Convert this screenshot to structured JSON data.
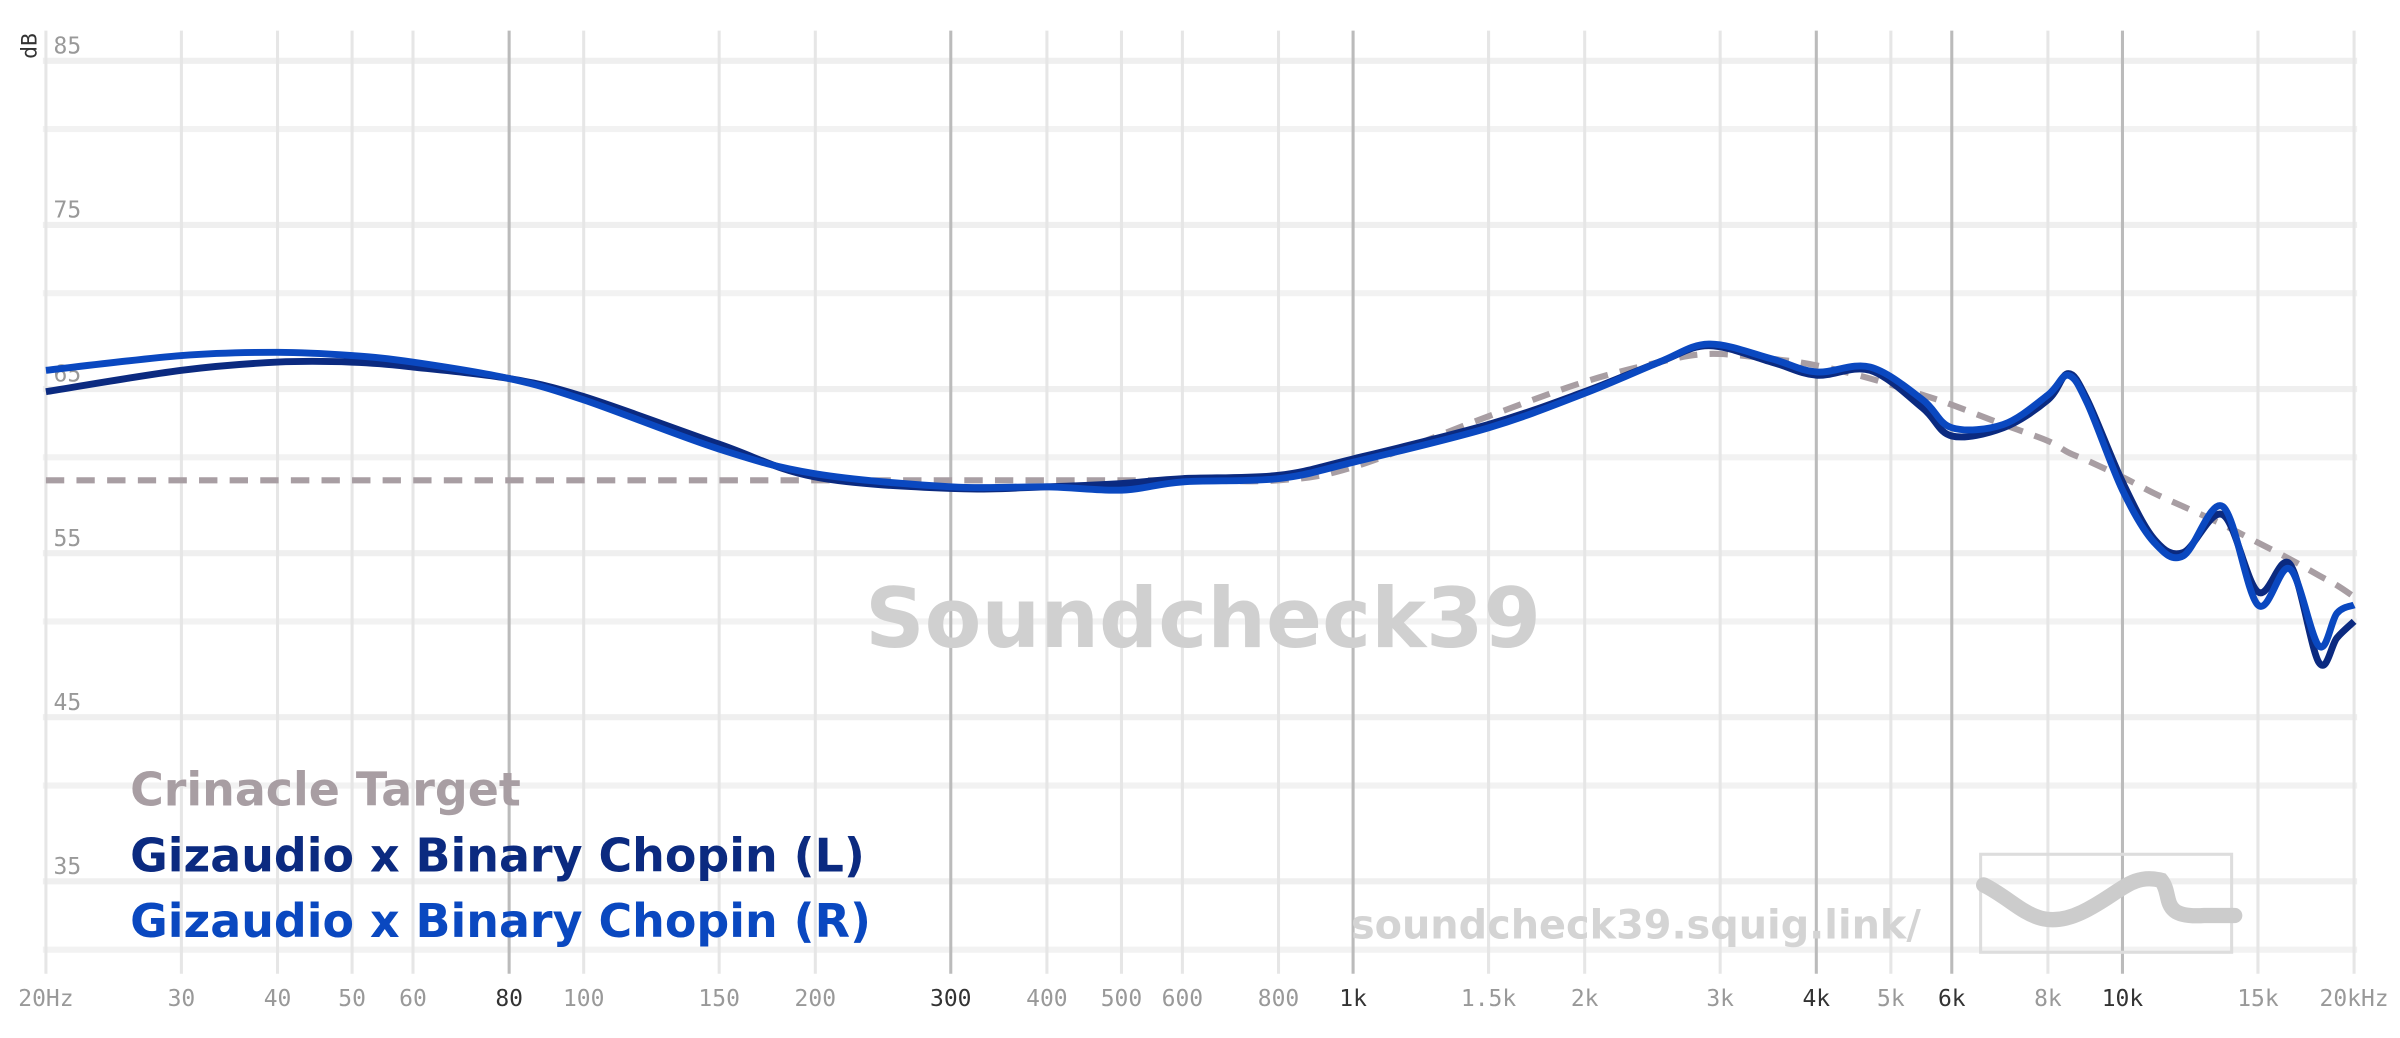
{
  "chart_data": {
    "type": "line",
    "y_label": "dB",
    "watermark": "Soundcheck39",
    "url": "soundcheck39.squig.link/",
    "log_x": true,
    "grid": true,
    "xlim": [
      20,
      20000
    ],
    "ylim": [
      29,
      86
    ],
    "xticks": [
      {
        "value": 20,
        "label": "20Hz"
      },
      30,
      40,
      50,
      60,
      {
        "value": 80,
        "label": "80",
        "major": true
      },
      100,
      150,
      200,
      {
        "value": 300,
        "label": "300",
        "major": true
      },
      400,
      500,
      600,
      800,
      {
        "value": 1000,
        "label": "1k",
        "major": true
      },
      {
        "value": 1500,
        "label": "1.5k"
      },
      {
        "value": 2000,
        "label": "2k"
      },
      {
        "value": 3000,
        "label": "3k"
      },
      {
        "value": 4000,
        "label": "4k",
        "major": true
      },
      {
        "value": 5000,
        "label": "5k"
      },
      {
        "value": 6000,
        "label": "6k",
        "major": true
      },
      {
        "value": 8000,
        "label": "8k"
      },
      {
        "value": 10000,
        "label": "10k",
        "major": true
      },
      {
        "value": 15000,
        "label": "15k"
      },
      {
        "value": 20000,
        "label": "20kHz"
      }
    ],
    "yticks": [
      85,
      75,
      65,
      55,
      45,
      35
    ],
    "yminor": [
      80,
      70,
      60,
      50,
      40,
      30
    ],
    "x": [
      20,
      30,
      40,
      50,
      60,
      80,
      100,
      150,
      200,
      300,
      400,
      500,
      600,
      800,
      1000,
      1500,
      2000,
      2500,
      2900,
      3500,
      4000,
      4700,
      5500,
      6000,
      7000,
      8000,
      8500,
      9000,
      10000,
      11000,
      12000,
      13500,
      15000,
      16500,
      18000,
      19000,
      20000
    ],
    "series": [
      {
        "name": "Crinacle Target",
        "color": "#a89ea3",
        "dashed": true,
        "values": [
          58.6,
          58.6,
          58.6,
          58.6,
          58.6,
          58.6,
          58.6,
          58.6,
          58.6,
          58.6,
          58.6,
          58.6,
          58.6,
          58.6,
          59.4,
          62.5,
          64.6,
          65.8,
          66.3,
          66,
          65.6,
          64.8,
          63.8,
          63.2,
          62,
          61,
          60.3,
          59.8,
          58.8,
          57.8,
          57,
          55.9,
          54.8,
          53.8,
          52.8,
          52.2,
          51.5
        ]
      },
      {
        "name": "Gizaudio x Binary Chopin (L)",
        "color": "#0b2a80",
        "values": [
          64,
          65.3,
          65.8,
          65.8,
          65.5,
          64.8,
          63.7,
          60.8,
          58.8,
          58.1,
          58.2,
          58.4,
          58.7,
          58.9,
          59.9,
          62,
          64,
          65.8,
          66.8,
          65.8,
          65,
          65.3,
          63,
          61.3,
          61.8,
          63.5,
          65.1,
          63.5,
          58.5,
          55,
          54.2,
          56.5,
          51.8,
          53.5,
          47.5,
          49,
          50
        ]
      },
      {
        "name": "Gizaudio x Binary Chopin (R)",
        "color": "#0a48c0",
        "values": [
          65.3,
          66.2,
          66.4,
          66.2,
          65.8,
          64.8,
          63.5,
          60.5,
          59,
          58.2,
          58.2,
          58,
          58.5,
          58.7,
          59.7,
          61.8,
          63.9,
          65.8,
          66.9,
          66,
          65.2,
          65.5,
          63.5,
          61.8,
          62,
          63.8,
          65,
          63.3,
          58,
          54.8,
          54,
          57,
          51,
          53.2,
          48.5,
          50.5,
          51
        ]
      }
    ]
  }
}
